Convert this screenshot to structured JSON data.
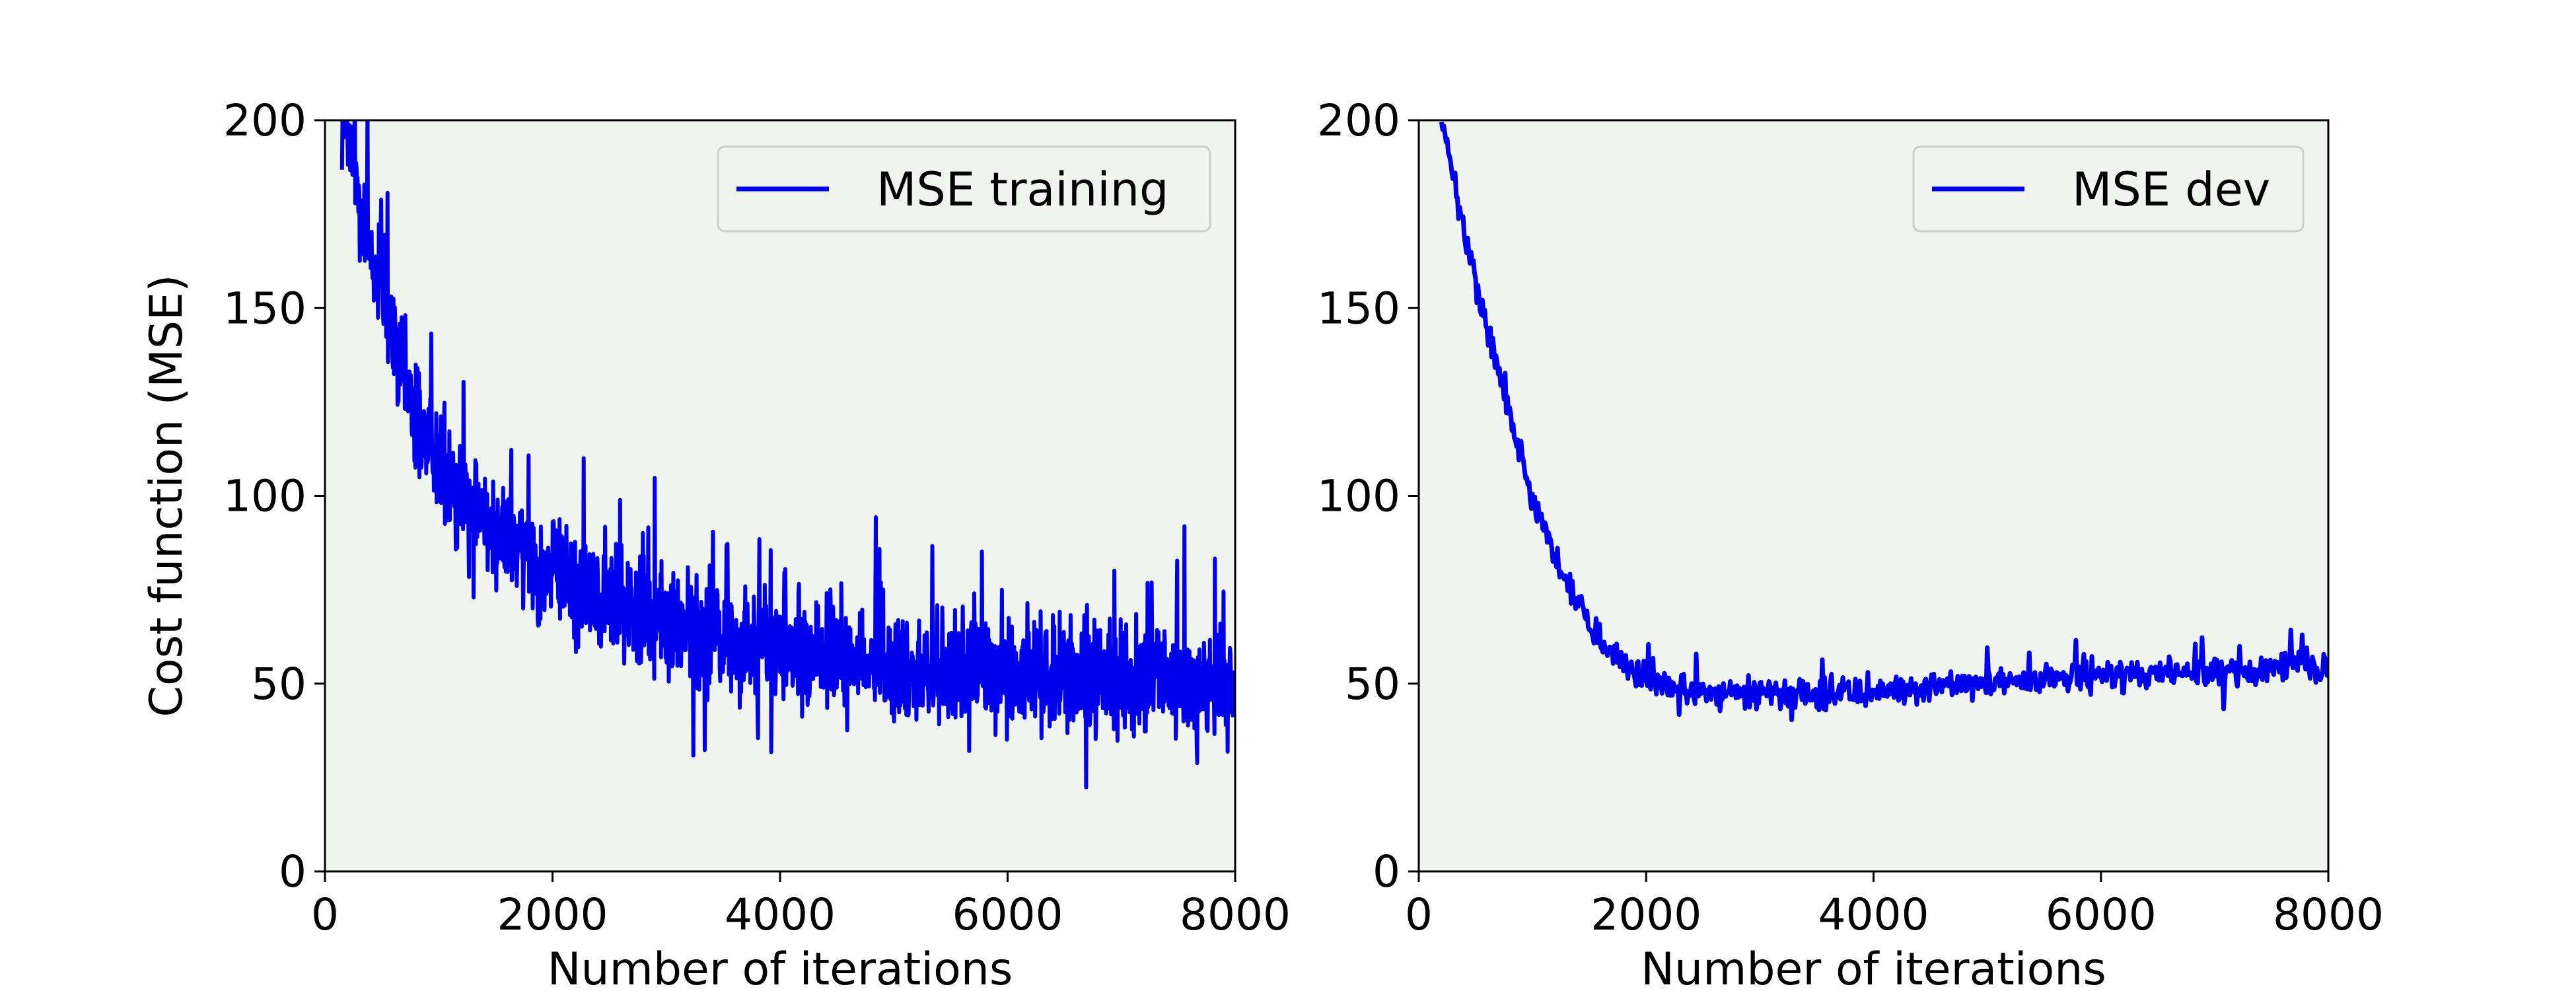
{
  "colors": {
    "plot_background": "#eff4ef",
    "line": "#0000ee",
    "axis": "#000000",
    "legend_border": "#cccccc"
  },
  "chart_data": [
    {
      "type": "line",
      "title": "",
      "xlabel": "Number of iterations",
      "ylabel": "Cost function (MSE)",
      "xlim": [
        0,
        8000
      ],
      "ylim": [
        0,
        200
      ],
      "xticks": [
        0,
        2000,
        4000,
        6000,
        8000
      ],
      "yticks": [
        0,
        50,
        100,
        150,
        200
      ],
      "grid": false,
      "legend_position": "top-right",
      "series": [
        {
          "name": "MSE training",
          "x": [
            150,
            250,
            350,
            450,
            550,
            650,
            750,
            850,
            1000,
            1200,
            1400,
            1600,
            1800,
            2000,
            2250,
            2500,
            2750,
            3000,
            3500,
            4000,
            4500,
            5000,
            5500,
            6000,
            6500,
            7000,
            7500,
            8000
          ],
          "y": [
            200,
            188,
            172,
            158,
            146,
            136,
            126,
            118,
            110,
            102,
            95,
            89,
            84,
            80,
            76,
            72,
            69,
            66,
            62,
            59,
            57,
            55,
            54,
            53,
            52,
            51,
            50,
            48
          ],
          "noise_amplitude": 11
        }
      ]
    },
    {
      "type": "line",
      "title": "",
      "xlabel": "Number of iterations",
      "ylabel": "",
      "xlim": [
        0,
        8000
      ],
      "ylim": [
        0,
        200
      ],
      "xticks": [
        0,
        2000,
        4000,
        6000,
        8000
      ],
      "yticks": [
        0,
        50,
        100,
        150,
        200
      ],
      "grid": false,
      "legend_position": "top-right",
      "series": [
        {
          "name": "MSE dev",
          "x": [
            200,
            400,
            600,
            800,
            1000,
            1200,
            1400,
            1600,
            1800,
            2000,
            2250,
            2500,
            2750,
            3000,
            3500,
            4000,
            4500,
            5000,
            5500,
            6000,
            6500,
            7000,
            7500,
            8000
          ],
          "y": [
            200,
            170,
            145,
            122,
            100,
            84,
            71,
            62,
            55,
            51,
            49,
            48,
            47,
            47,
            47,
            48,
            49,
            50,
            51,
            52,
            52,
            53,
            54,
            55
          ],
          "noise_amplitude": 3
        }
      ]
    }
  ]
}
